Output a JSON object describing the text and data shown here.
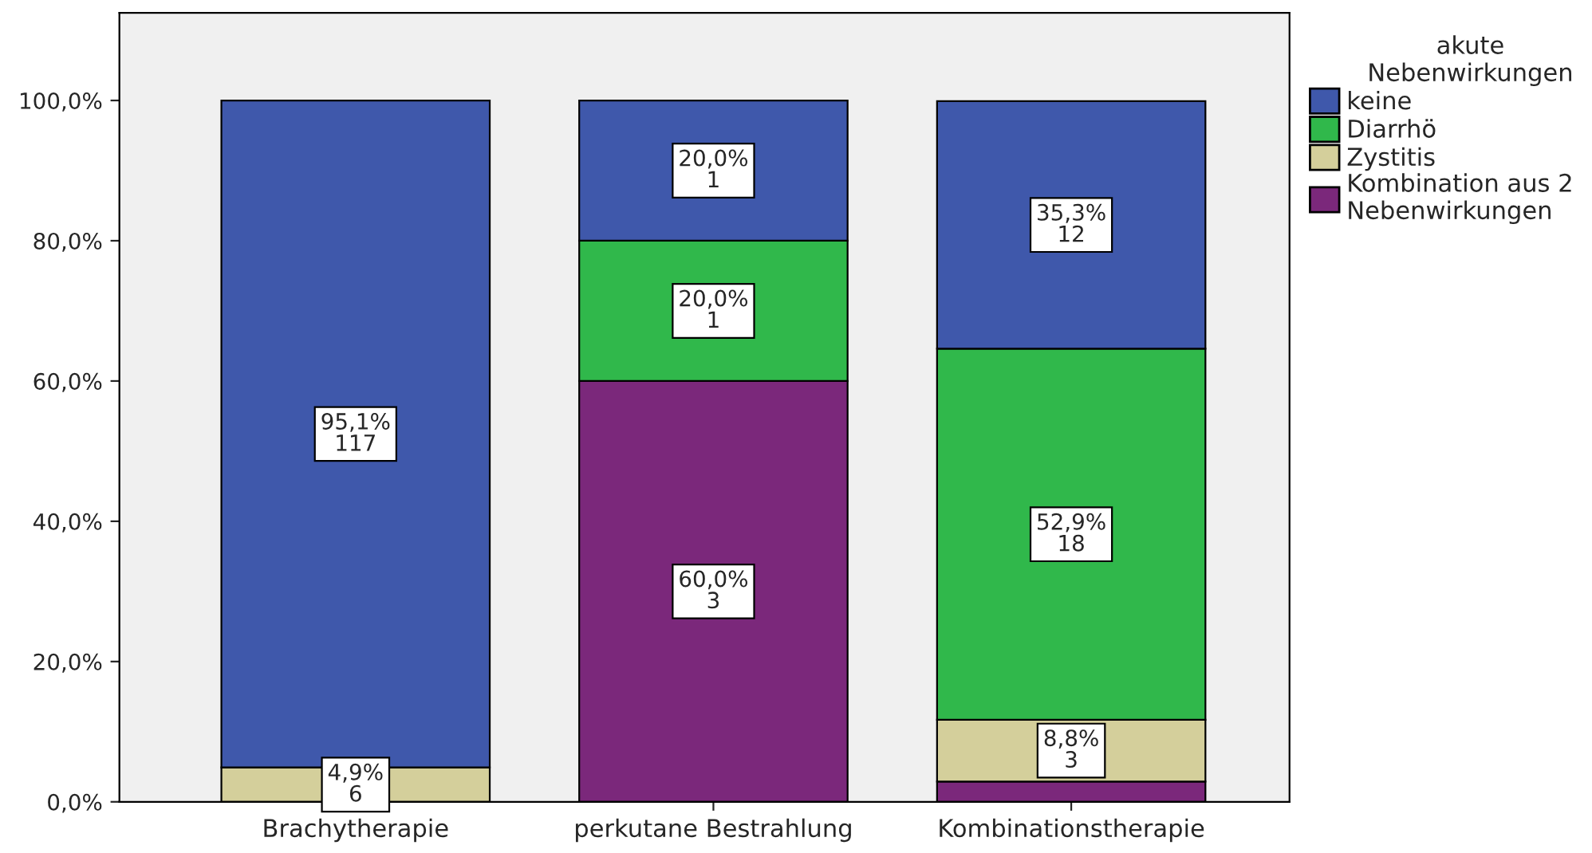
{
  "chart_data": {
    "type": "bar",
    "stacked": true,
    "categories": [
      "Brachytherapie",
      "perkutane Bestrahlung",
      "Kombinationstherapie"
    ],
    "series": [
      {
        "name": "Kombination aus 2\nNebenwirkungen",
        "color": "#7b287b",
        "values": [
          null,
          60.0,
          2.9
        ],
        "value_labels": [
          null,
          "60,0%\n3",
          null
        ]
      },
      {
        "name": "Zystitis",
        "color": "#d4cf9b",
        "values": [
          4.9,
          null,
          8.8
        ],
        "value_labels": [
          "4,9%\n6",
          null,
          "8,8%\n3"
        ]
      },
      {
        "name": "Diarrhö",
        "color": "#30b84b",
        "values": [
          null,
          20.0,
          52.9
        ],
        "value_labels": [
          null,
          "20,0%\n1",
          "52,9%\n18"
        ]
      },
      {
        "name": "keine",
        "color": "#3f58ab",
        "values": [
          95.1,
          20.0,
          35.3
        ],
        "value_labels": [
          "95,1%\n117",
          "20,0%\n1",
          "35,3%\n12"
        ]
      }
    ],
    "ylim": [
      0,
      112.5
    ],
    "yticks": [
      {
        "value": 0,
        "label": "0,0%"
      },
      {
        "value": 20,
        "label": "20,0%"
      },
      {
        "value": 40,
        "label": "40,0%"
      },
      {
        "value": 60,
        "label": "60,0%"
      },
      {
        "value": 80,
        "label": "80,0%"
      },
      {
        "value": 100,
        "label": "100,0%"
      }
    ],
    "legend_title": "akute\nNebenwirkungen",
    "legend": "top right",
    "grid": false
  }
}
